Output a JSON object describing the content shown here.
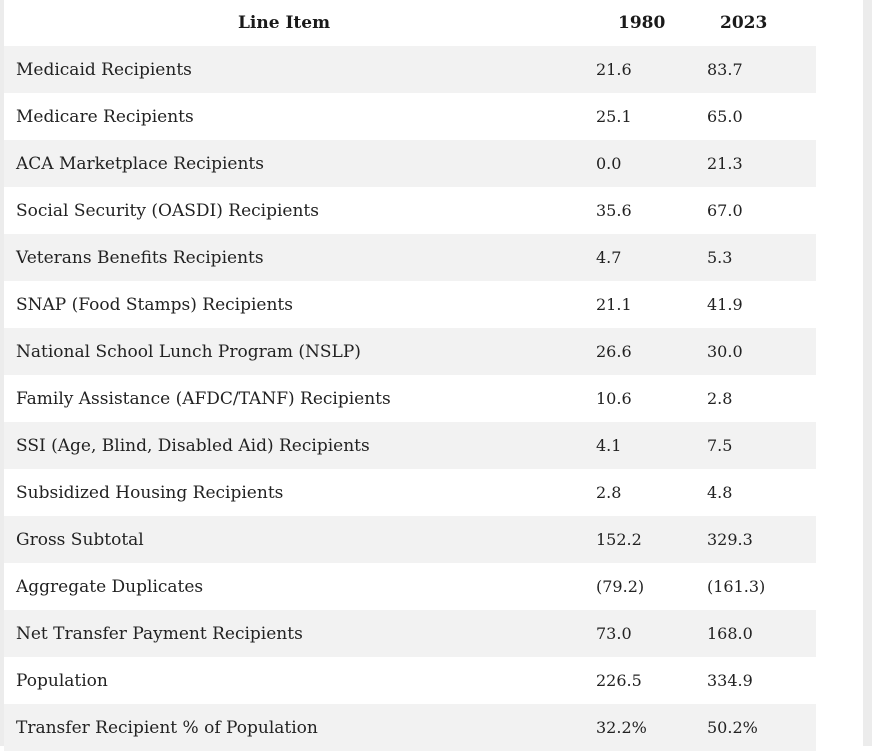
{
  "table": {
    "headers": [
      "Line Item",
      "1980",
      "2023"
    ],
    "rows": [
      [
        "Medicaid Recipients",
        "21.6",
        "83.7"
      ],
      [
        "Medicare Recipients",
        "25.1",
        "65.0"
      ],
      [
        "ACA Marketplace Recipients",
        "0.0",
        "21.3"
      ],
      [
        "Social Security (OASDI) Recipients",
        "35.6",
        "67.0"
      ],
      [
        "Veterans Benefits Recipients",
        "4.7",
        "5.3"
      ],
      [
        "SNAP (Food Stamps) Recipients",
        "21.1",
        "41.9"
      ],
      [
        "National School Lunch Program (NSLP)",
        "26.6",
        "30.0"
      ],
      [
        "Family Assistance (AFDC/TANF) Recipients",
        "10.6",
        "2.8"
      ],
      [
        "SSI (Age, Blind, Disabled Aid) Recipients",
        "4.1",
        "7.5"
      ],
      [
        "Subsidized Housing Recipients",
        "2.8",
        "4.8"
      ],
      [
        "Gross Subtotal",
        "152.2",
        "329.3"
      ],
      [
        "Aggregate Duplicates",
        "(79.2)",
        "(161.3)"
      ],
      [
        "Net Transfer Payment Recipients",
        "73.0",
        "168.0"
      ],
      [
        "Population",
        "226.5",
        "334.9"
      ],
      [
        "Transfer Recipient % of Population",
        "32.2%",
        "50.2%"
      ]
    ]
  },
  "colors": {
    "row_shade": "#f2f2f2",
    "row_plain": "#ffffff",
    "side_bar": "#ececec",
    "text": "#222222"
  }
}
